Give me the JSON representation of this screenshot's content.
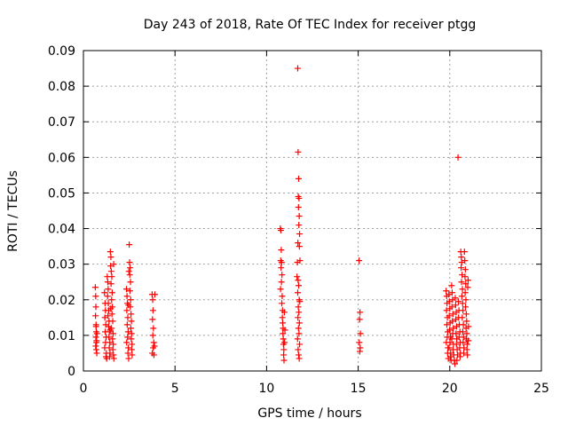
{
  "chart_data": {
    "type": "scatter",
    "title": "Day 243 of 2018, Rate Of TEC Index for receiver ptgg",
    "xlabel": "GPS time / hours",
    "ylabel": "ROTI / TECUs",
    "xlim": [
      0,
      25
    ],
    "ylim": [
      0,
      0.09
    ],
    "xticks": [
      0,
      5,
      10,
      15,
      20,
      25
    ],
    "yticks": [
      0,
      0.01,
      0.02,
      0.03,
      0.04,
      0.05,
      0.06,
      0.07,
      0.08,
      0.09
    ],
    "xtick_labels": [
      "0",
      "5",
      "10",
      "15",
      "20",
      "25"
    ],
    "ytick_labels": [
      "0",
      "0.01",
      "0.02",
      "0.03",
      "0.04",
      "0.05",
      "0.06",
      "0.07",
      "0.08",
      "0.09"
    ],
    "grid": true,
    "marker": "+",
    "marker_color": "#ff0000",
    "series": [
      {
        "points": [
          [
            0.65,
            0.0235
          ],
          [
            0.67,
            0.021
          ],
          [
            0.68,
            0.018
          ],
          [
            0.66,
            0.0155
          ],
          [
            0.69,
            0.013
          ],
          [
            0.7,
            0.011
          ],
          [
            0.68,
            0.0095
          ],
          [
            0.71,
            0.008
          ],
          [
            0.67,
            0.007
          ],
          [
            0.7,
            0.006
          ],
          [
            0.73,
            0.005
          ],
          [
            0.72,
            0.0085
          ],
          [
            0.74,
            0.0105
          ],
          [
            0.69,
            0.0125
          ],
          [
            1.15,
            0.022
          ],
          [
            1.18,
            0.019
          ],
          [
            1.2,
            0.017
          ],
          [
            1.17,
            0.015
          ],
          [
            1.22,
            0.013
          ],
          [
            1.19,
            0.011
          ],
          [
            1.24,
            0.0095
          ],
          [
            1.21,
            0.008
          ],
          [
            1.16,
            0.0065
          ],
          [
            1.25,
            0.005
          ],
          [
            1.23,
            0.004
          ],
          [
            1.27,
            0.0035
          ],
          [
            1.3,
            0.0265
          ],
          [
            1.33,
            0.025
          ],
          [
            1.35,
            0.023
          ],
          [
            1.32,
            0.021
          ],
          [
            1.36,
            0.019
          ],
          [
            1.38,
            0.017
          ],
          [
            1.34,
            0.0155
          ],
          [
            1.4,
            0.014
          ],
          [
            1.37,
            0.0125
          ],
          [
            1.42,
            0.011
          ],
          [
            1.39,
            0.0095
          ],
          [
            1.44,
            0.008
          ],
          [
            1.41,
            0.0065
          ],
          [
            1.45,
            0.005
          ],
          [
            1.43,
            0.004
          ],
          [
            1.47,
            0.0335
          ],
          [
            1.5,
            0.032
          ],
          [
            1.48,
            0.0295
          ],
          [
            1.52,
            0.028
          ],
          [
            1.55,
            0.0265
          ],
          [
            1.51,
            0.0245
          ],
          [
            1.57,
            0.022
          ],
          [
            1.54,
            0.02
          ],
          [
            1.58,
            0.018
          ],
          [
            1.56,
            0.016
          ],
          [
            1.6,
            0.014
          ],
          [
            1.53,
            0.012
          ],
          [
            1.62,
            0.0105
          ],
          [
            1.59,
            0.009
          ],
          [
            1.63,
            0.0075
          ],
          [
            1.61,
            0.006
          ],
          [
            1.64,
            0.0045
          ],
          [
            1.66,
            0.0035
          ],
          [
            1.65,
            0.03
          ],
          [
            1.49,
            0.0175
          ],
          [
            1.46,
            0.0115
          ],
          [
            2.35,
            0.023
          ],
          [
            2.38,
            0.021
          ],
          [
            2.4,
            0.019
          ],
          [
            2.37,
            0.017
          ],
          [
            2.42,
            0.015
          ],
          [
            2.39,
            0.013
          ],
          [
            2.44,
            0.011
          ],
          [
            2.41,
            0.0095
          ],
          [
            2.36,
            0.008
          ],
          [
            2.45,
            0.0065
          ],
          [
            2.43,
            0.005
          ],
          [
            2.47,
            0.0035
          ],
          [
            2.5,
            0.0355
          ],
          [
            2.52,
            0.0305
          ],
          [
            2.55,
            0.029
          ],
          [
            2.53,
            0.027
          ],
          [
            2.57,
            0.025
          ],
          [
            2.54,
            0.0225
          ],
          [
            2.58,
            0.02
          ],
          [
            2.56,
            0.018
          ],
          [
            2.6,
            0.016
          ],
          [
            2.62,
            0.014
          ],
          [
            2.59,
            0.012
          ],
          [
            2.63,
            0.0105
          ],
          [
            2.61,
            0.009
          ],
          [
            2.65,
            0.0075
          ],
          [
            2.64,
            0.006
          ],
          [
            2.66,
            0.0045
          ],
          [
            2.48,
            0.028
          ],
          [
            2.46,
            0.0185
          ],
          [
            3.75,
            0.0215
          ],
          [
            3.78,
            0.02
          ],
          [
            3.8,
            0.017
          ],
          [
            3.77,
            0.0145
          ],
          [
            3.82,
            0.012
          ],
          [
            3.79,
            0.01
          ],
          [
            3.84,
            0.008
          ],
          [
            3.81,
            0.0065
          ],
          [
            3.76,
            0.005
          ],
          [
            3.85,
            0.0045
          ],
          [
            3.88,
            0.007
          ],
          [
            3.9,
            0.0215
          ],
          [
            10.75,
            0.04
          ],
          [
            10.78,
            0.0395
          ],
          [
            10.8,
            0.034
          ],
          [
            10.77,
            0.031
          ],
          [
            10.82,
            0.0305
          ],
          [
            10.79,
            0.029
          ],
          [
            10.84,
            0.027
          ],
          [
            10.81,
            0.025
          ],
          [
            10.76,
            0.023
          ],
          [
            10.85,
            0.021
          ],
          [
            10.83,
            0.019
          ],
          [
            10.87,
            0.017
          ],
          [
            10.86,
            0.015
          ],
          [
            10.88,
            0.0135
          ],
          [
            10.9,
            0.012
          ],
          [
            10.89,
            0.0105
          ],
          [
            10.91,
            0.009
          ],
          [
            10.92,
            0.0075
          ],
          [
            10.94,
            0.006
          ],
          [
            10.93,
            0.0045
          ],
          [
            10.95,
            0.003
          ],
          [
            10.97,
            0.0165
          ],
          [
            10.98,
            0.008
          ],
          [
            11.0,
            0.0115
          ],
          [
            11.7,
            0.085
          ],
          [
            11.72,
            0.0615
          ],
          [
            11.75,
            0.054
          ],
          [
            11.73,
            0.049
          ],
          [
            11.77,
            0.0485
          ],
          [
            11.74,
            0.046
          ],
          [
            11.78,
            0.0435
          ],
          [
            11.76,
            0.041
          ],
          [
            11.8,
            0.0385
          ],
          [
            11.71,
            0.036
          ],
          [
            11.79,
            0.035
          ],
          [
            11.82,
            0.031
          ],
          [
            11.68,
            0.0305
          ],
          [
            11.72,
            0.0255
          ],
          [
            11.75,
            0.024
          ],
          [
            11.7,
            0.022
          ],
          [
            11.78,
            0.02
          ],
          [
            11.73,
            0.018
          ],
          [
            11.76,
            0.0165
          ],
          [
            11.71,
            0.015
          ],
          [
            11.79,
            0.0135
          ],
          [
            11.74,
            0.012
          ],
          [
            11.77,
            0.0105
          ],
          [
            11.69,
            0.009
          ],
          [
            11.8,
            0.0075
          ],
          [
            11.72,
            0.006
          ],
          [
            11.75,
            0.0045
          ],
          [
            11.78,
            0.0035
          ],
          [
            11.81,
            0.0195
          ],
          [
            11.66,
            0.0265
          ],
          [
            15.05,
            0.031
          ],
          [
            15.1,
            0.0165
          ],
          [
            15.08,
            0.0145
          ],
          [
            15.12,
            0.0105
          ],
          [
            15.06,
            0.008
          ],
          [
            15.11,
            0.0065
          ],
          [
            15.09,
            0.0055
          ],
          [
            19.8,
            0.0225
          ],
          [
            19.83,
            0.021
          ],
          [
            19.85,
            0.019
          ],
          [
            19.82,
            0.017
          ],
          [
            19.87,
            0.015
          ],
          [
            19.84,
            0.013
          ],
          [
            19.89,
            0.011
          ],
          [
            19.86,
            0.0095
          ],
          [
            19.81,
            0.008
          ],
          [
            19.9,
            0.0065
          ],
          [
            19.88,
            0.005
          ],
          [
            19.92,
            0.0035
          ],
          [
            19.95,
            0.0215
          ],
          [
            19.98,
            0.0195
          ],
          [
            20.0,
            0.0175
          ],
          [
            19.97,
            0.0155
          ],
          [
            20.02,
            0.0135
          ],
          [
            19.99,
            0.0115
          ],
          [
            20.04,
            0.0095
          ],
          [
            20.01,
            0.008
          ],
          [
            19.96,
            0.0065
          ],
          [
            20.05,
            0.005
          ],
          [
            20.03,
            0.004
          ],
          [
            20.07,
            0.003
          ],
          [
            20.1,
            0.024
          ],
          [
            20.13,
            0.022
          ],
          [
            20.15,
            0.02
          ],
          [
            20.12,
            0.018
          ],
          [
            20.17,
            0.016
          ],
          [
            20.14,
            0.014
          ],
          [
            20.19,
            0.012
          ],
          [
            20.16,
            0.0105
          ],
          [
            20.11,
            0.009
          ],
          [
            20.2,
            0.0075
          ],
          [
            20.18,
            0.006
          ],
          [
            20.22,
            0.0045
          ],
          [
            20.25,
            0.003
          ],
          [
            20.28,
            0.002
          ],
          [
            20.3,
            0.0205
          ],
          [
            20.32,
            0.0185
          ],
          [
            20.35,
            0.0165
          ],
          [
            20.33,
            0.0145
          ],
          [
            20.37,
            0.0125
          ],
          [
            20.34,
            0.0105
          ],
          [
            20.38,
            0.009
          ],
          [
            20.36,
            0.0075
          ],
          [
            20.4,
            0.006
          ],
          [
            20.42,
            0.0045
          ],
          [
            20.39,
            0.003
          ],
          [
            20.45,
            0.06
          ],
          [
            20.47,
            0.0195
          ],
          [
            20.5,
            0.017
          ],
          [
            20.48,
            0.015
          ],
          [
            20.52,
            0.013
          ],
          [
            20.55,
            0.011
          ],
          [
            20.51,
            0.0095
          ],
          [
            20.57,
            0.008
          ],
          [
            20.54,
            0.0065
          ],
          [
            20.58,
            0.005
          ],
          [
            20.56,
            0.004
          ],
          [
            20.6,
            0.0335
          ],
          [
            20.63,
            0.032
          ],
          [
            20.65,
            0.0305
          ],
          [
            20.62,
            0.029
          ],
          [
            20.67,
            0.027
          ],
          [
            20.64,
            0.025
          ],
          [
            20.69,
            0.023
          ],
          [
            20.66,
            0.021
          ],
          [
            20.7,
            0.019
          ],
          [
            20.72,
            0.017
          ],
          [
            20.68,
            0.015
          ],
          [
            20.74,
            0.013
          ],
          [
            20.71,
            0.011
          ],
          [
            20.75,
            0.0095
          ],
          [
            20.73,
            0.008
          ],
          [
            20.77,
            0.0065
          ],
          [
            20.76,
            0.005
          ],
          [
            20.8,
            0.0335
          ],
          [
            20.82,
            0.031
          ],
          [
            20.85,
            0.0285
          ],
          [
            20.83,
            0.0265
          ],
          [
            20.87,
            0.0245
          ],
          [
            20.84,
            0.022
          ],
          [
            20.88,
            0.02
          ],
          [
            20.86,
            0.018
          ],
          [
            20.9,
            0.016
          ],
          [
            20.92,
            0.014
          ],
          [
            20.89,
            0.012
          ],
          [
            20.93,
            0.0105
          ],
          [
            20.91,
            0.009
          ],
          [
            20.95,
            0.0075
          ],
          [
            20.94,
            0.006
          ],
          [
            20.96,
            0.0045
          ],
          [
            20.98,
            0.0235
          ],
          [
            21.0,
            0.0255
          ],
          [
            21.02,
            0.0125
          ],
          [
            21.01,
            0.0085
          ]
        ]
      }
    ]
  }
}
